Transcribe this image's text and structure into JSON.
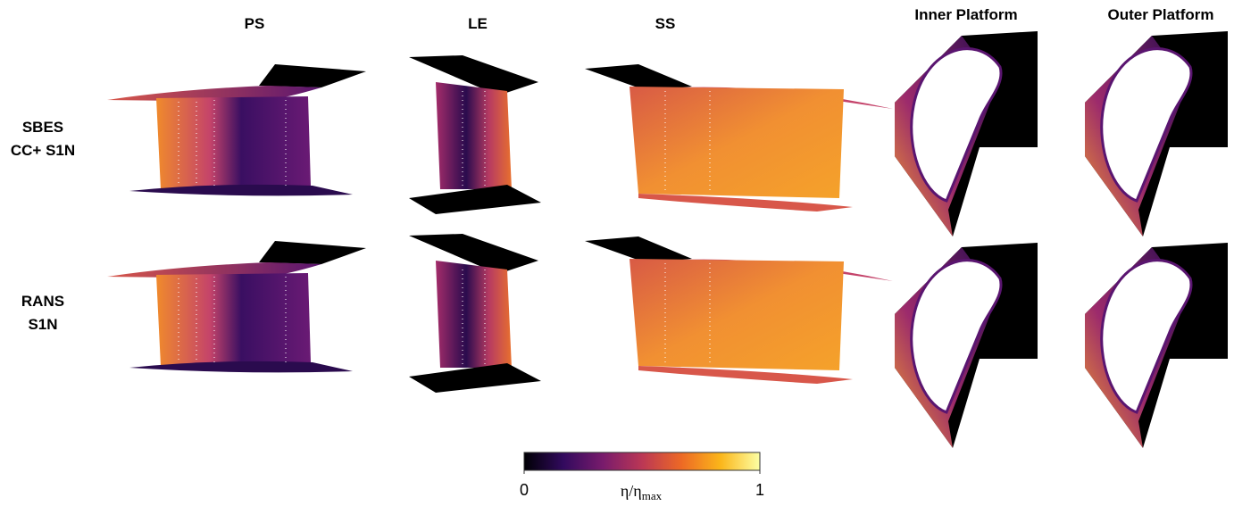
{
  "figure": {
    "columns": [
      "PS",
      "LE",
      "SS",
      "Inner Platform",
      "Outer Platform"
    ],
    "rows": [
      {
        "lines": [
          "SBES",
          "CC+ S1N"
        ]
      },
      {
        "lines": [
          "RANS",
          "S1N"
        ]
      }
    ],
    "colorbar": {
      "lim": [
        0,
        1
      ],
      "ticks": [
        0,
        1
      ],
      "label": "η/η",
      "label_subscript": "max",
      "colors": [
        "#000004",
        "#320a5e",
        "#781b6c",
        "#bb3755",
        "#ed6925",
        "#fbb61a",
        "#fcffa4"
      ]
    }
  }
}
